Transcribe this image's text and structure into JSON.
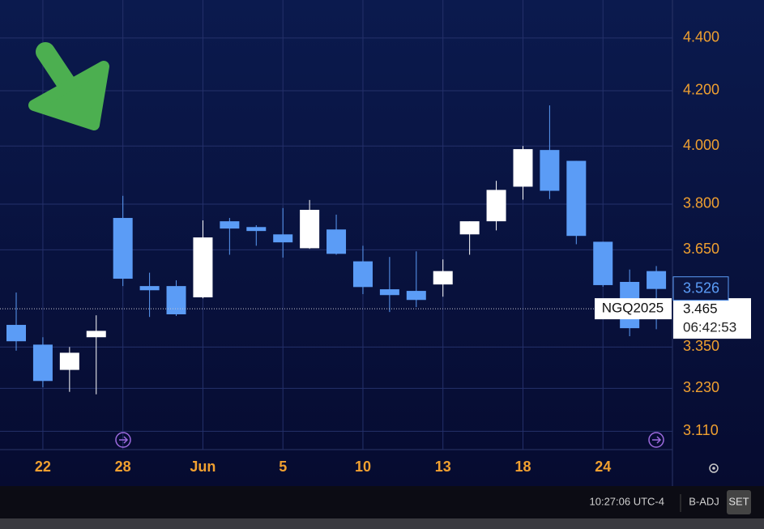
{
  "chart_data": {
    "type": "candlestick",
    "categories": [
      null,
      "22",
      null,
      null,
      "28",
      null,
      null,
      "Jun",
      null,
      null,
      "5",
      null,
      null,
      "10",
      null,
      null,
      "13",
      null,
      null,
      "18",
      null,
      null,
      "24",
      null,
      null
    ],
    "open": [
      3.416,
      3.357,
      3.283,
      3.379,
      3.754,
      3.535,
      3.535,
      3.5,
      3.743,
      3.724,
      3.7,
      3.655,
      3.716,
      3.613,
      3.525,
      3.52,
      3.54,
      3.7,
      3.743,
      3.859,
      3.986,
      3.948,
      3.676,
      3.548,
      3.582
    ],
    "high": [
      3.515,
      3.379,
      3.35,
      3.445,
      3.828,
      3.577,
      3.553,
      3.746,
      3.754,
      3.73,
      3.787,
      3.814,
      3.765,
      3.663,
      3.627,
      3.645,
      3.619,
      3.743,
      3.879,
      4.0,
      4.146,
      3.948,
      3.676,
      3.587,
      3.598
    ],
    "low": [
      3.339,
      3.233,
      3.22,
      3.213,
      3.535,
      3.44,
      3.443,
      3.497,
      3.634,
      3.663,
      3.625,
      3.653,
      3.634,
      3.51,
      3.455,
      3.47,
      3.502,
      3.634,
      3.713,
      3.815,
      3.817,
      3.668,
      3.533,
      3.382,
      3.403
    ],
    "close": [
      3.367,
      3.251,
      3.333,
      3.398,
      3.558,
      3.522,
      3.448,
      3.69,
      3.719,
      3.711,
      3.674,
      3.781,
      3.637,
      3.532,
      3.507,
      3.492,
      3.582,
      3.743,
      3.848,
      3.989,
      3.845,
      3.695,
      3.538,
      3.406,
      3.526
    ],
    "up_color": "#ffffff",
    "down_color": "#5b9cf6",
    "log_scale": true,
    "grid": true,
    "ylim": [
      3.06,
      4.55
    ],
    "yticks": [
      {
        "value": 3.11,
        "label": "3.110"
      },
      {
        "value": 3.23,
        "label": "3.230"
      },
      {
        "value": 3.35,
        "label": "3.350"
      },
      {
        "value": 3.65,
        "label": "3.650"
      },
      {
        "value": 3.8,
        "label": "3.800"
      },
      {
        "value": 4.0,
        "label": "4.000"
      },
      {
        "value": 4.2,
        "label": "4.200"
      },
      {
        "value": 4.4,
        "label": "4.400"
      }
    ],
    "last_price": 3.526,
    "reference_line": {
      "name": "NGQ2025",
      "value": 3.465,
      "time": "06:42:53"
    }
  },
  "footer": {
    "time": "10:27:06 UTC-4",
    "adjust": "B-ADJ",
    "set": "SET"
  }
}
